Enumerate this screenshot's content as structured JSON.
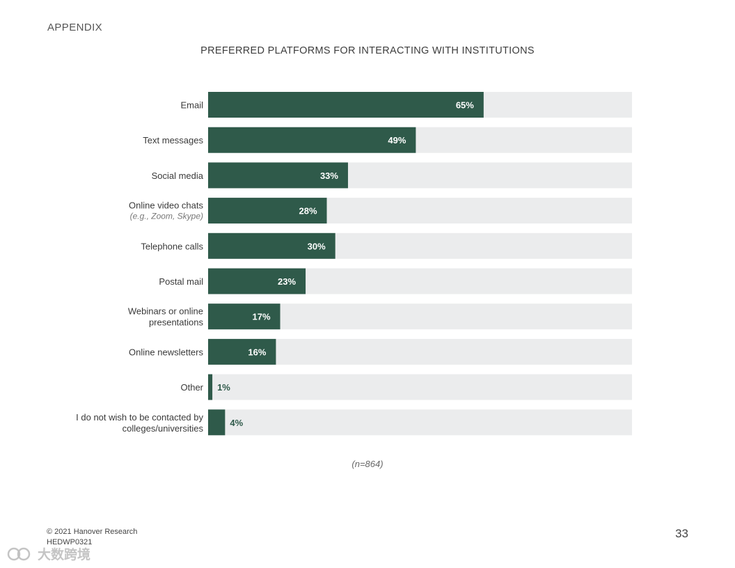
{
  "header": {
    "section": "APPENDIX"
  },
  "chart_data": {
    "type": "bar",
    "orientation": "horizontal",
    "title": "PREFERRED PLATFORMS FOR INTERACTING WITH INSTITUTIONS",
    "categories": [
      "Email",
      "Text messages",
      "Social media",
      "Online video chats",
      "Telephone calls",
      "Postal mail",
      "Webinars or online presentations",
      "Online newsletters",
      "Other",
      "I do not wish to be contacted by colleges/universities"
    ],
    "category_lines": [
      [
        "Email"
      ],
      [
        "Text messages"
      ],
      [
        "Social media"
      ],
      [
        "Online video chats"
      ],
      [
        "Telephone calls"
      ],
      [
        "Postal mail"
      ],
      [
        "Webinars or online",
        "presentations"
      ],
      [
        "Online newsletters"
      ],
      [
        "Other"
      ],
      [
        "I do not wish to be contacted by",
        "colleges/universities"
      ]
    ],
    "sublabels": [
      "",
      "",
      "",
      "(e.g., Zoom, Skype)",
      "",
      "",
      "",
      "",
      "",
      ""
    ],
    "values": [
      65,
      49,
      33,
      28,
      30,
      23,
      17,
      16,
      1,
      4
    ],
    "value_labels": [
      "65%",
      "49%",
      "33%",
      "28%",
      "30%",
      "23%",
      "17%",
      "16%",
      "1%",
      "4%"
    ],
    "xlim": [
      0,
      100
    ],
    "unit": "%",
    "grid": false,
    "legend": "none",
    "note": "(n=864)",
    "colors": {
      "bar": "#2f5a4a",
      "track": "#ebeced",
      "label_inside": "#ffffff",
      "label_outside": "#2f5a4a"
    }
  },
  "footer": {
    "copyright": "© 2021 Hanover Research",
    "code": "HEDWP0321",
    "page_number": "33"
  },
  "watermark": {
    "text": "大数跨境"
  }
}
